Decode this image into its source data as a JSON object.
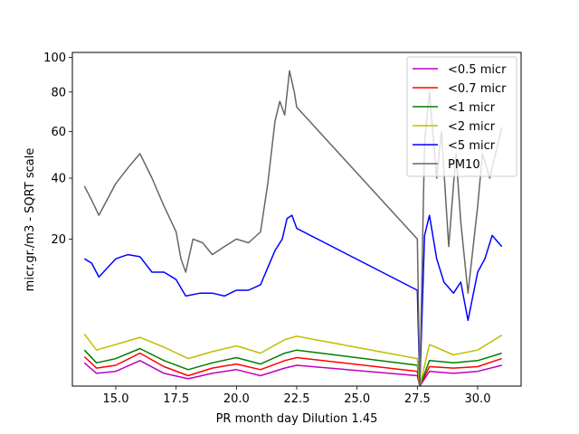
{
  "chart_data": {
    "type": "line",
    "title": "",
    "xlabel": "PR month day  Dilution 1.45",
    "ylabel": "micr.gr./m3 - SQRT scale",
    "y_scale": "sqrt",
    "xlim": [
      13.2,
      31.8
    ],
    "ylim": [
      0,
      103
    ],
    "x_ticks": [
      15.0,
      17.5,
      20.0,
      22.5,
      25.0,
      27.5,
      30.0
    ],
    "x_tick_labels": [
      "15.0",
      "17.5",
      "20.0",
      "22.5",
      "25.0",
      "27.5",
      "30.0"
    ],
    "y_ticks": [
      20,
      40,
      60,
      80,
      100
    ],
    "y_tick_labels": [
      "20",
      "40",
      "60",
      "80",
      "100"
    ],
    "grid": false,
    "legend_position": "top-right",
    "series": [
      {
        "name": "<0.5 micr",
        "color": "#bf00bf",
        "x": [
          13.7,
          14.2,
          15.0,
          16.0,
          17.0,
          18.0,
          19.0,
          20.0,
          21.0,
          22.0,
          22.5,
          27.5,
          27.6,
          28.0,
          29.0,
          30.0,
          31.0
        ],
        "y": [
          0.5,
          0.15,
          0.2,
          0.6,
          0.15,
          0.05,
          0.15,
          0.25,
          0.1,
          0.3,
          0.4,
          0.1,
          0.0,
          0.2,
          0.15,
          0.2,
          0.4
        ]
      },
      {
        "name": "<0.7 micr",
        "color": "#ff0000",
        "x": [
          13.7,
          14.2,
          15.0,
          16.0,
          17.0,
          18.0,
          19.0,
          20.0,
          21.0,
          22.0,
          22.5,
          27.5,
          27.6,
          28.0,
          29.0,
          30.0,
          31.0
        ],
        "y": [
          0.8,
          0.3,
          0.4,
          1.0,
          0.35,
          0.1,
          0.3,
          0.45,
          0.25,
          0.6,
          0.75,
          0.2,
          0.0,
          0.35,
          0.3,
          0.35,
          0.7
        ]
      },
      {
        "name": "<1 micr",
        "color": "#008000",
        "x": [
          13.7,
          14.2,
          15.0,
          16.0,
          17.0,
          18.0,
          19.0,
          20.0,
          21.0,
          22.0,
          22.5,
          27.5,
          27.6,
          28.0,
          29.0,
          30.0,
          31.0
        ],
        "y": [
          1.2,
          0.5,
          0.7,
          1.3,
          0.6,
          0.25,
          0.5,
          0.75,
          0.45,
          1.0,
          1.2,
          0.4,
          0.0,
          0.6,
          0.5,
          0.6,
          1.0
        ]
      },
      {
        "name": "<2 micr",
        "color": "#bfbf00",
        "x": [
          13.7,
          14.2,
          15.0,
          16.0,
          17.0,
          18.0,
          19.0,
          20.0,
          21.0,
          22.0,
          22.5,
          27.5,
          27.6,
          28.0,
          29.0,
          30.0,
          31.0
        ],
        "y": [
          2.5,
          1.2,
          1.6,
          2.2,
          1.4,
          0.7,
          1.1,
          1.5,
          1.0,
          2.0,
          2.3,
          0.7,
          0.0,
          1.6,
          0.9,
          1.2,
          2.4
        ]
      },
      {
        "name": "<5 micr",
        "color": "#0000ff",
        "x": [
          13.7,
          14.0,
          14.3,
          15.0,
          15.5,
          16.0,
          16.5,
          17.0,
          17.5,
          17.9,
          18.5,
          19.0,
          19.5,
          20.0,
          20.5,
          21.0,
          21.3,
          21.6,
          21.9,
          22.1,
          22.3,
          22.5,
          27.5,
          27.6,
          27.8,
          28.0,
          28.3,
          28.6,
          29.0,
          29.3,
          29.6,
          30.0,
          30.3,
          30.6,
          31.0
        ],
        "y": [
          15.0,
          14.0,
          11.0,
          15.0,
          16.0,
          15.5,
          12.0,
          12.0,
          10.5,
          7.5,
          8.0,
          8.0,
          7.5,
          8.5,
          8.5,
          9.5,
          13.0,
          17.0,
          20.0,
          26.0,
          27.0,
          23.0,
          8.5,
          0.0,
          21.0,
          27.0,
          15.0,
          10.0,
          8.0,
          10.0,
          4.0,
          12.0,
          15.0,
          21.0,
          18.0
        ]
      },
      {
        "name": "PM10",
        "color": "#666666",
        "x": [
          13.7,
          14.0,
          14.3,
          15.0,
          15.5,
          16.0,
          16.5,
          17.0,
          17.5,
          17.7,
          17.9,
          18.2,
          18.6,
          19.0,
          19.5,
          20.0,
          20.5,
          21.0,
          21.3,
          21.6,
          21.8,
          22.0,
          22.2,
          22.4,
          22.5,
          27.5,
          27.6,
          27.8,
          28.0,
          28.3,
          28.5,
          28.8,
          29.1,
          29.3,
          29.6,
          30.0,
          30.2,
          30.5,
          31.0
        ],
        "y": [
          37.0,
          32.0,
          27.0,
          38.0,
          44.0,
          50.0,
          40.0,
          30.0,
          22.0,
          15.0,
          12.0,
          20.0,
          19.0,
          16.0,
          18.0,
          20.0,
          19.0,
          22.0,
          38.0,
          65.0,
          75.0,
          68.0,
          92.0,
          80.0,
          72.0,
          20.0,
          0.0,
          55.0,
          80.0,
          40.0,
          60.0,
          18.0,
          50.0,
          25.0,
          8.0,
          30.0,
          50.0,
          40.0,
          62.0
        ]
      }
    ]
  }
}
